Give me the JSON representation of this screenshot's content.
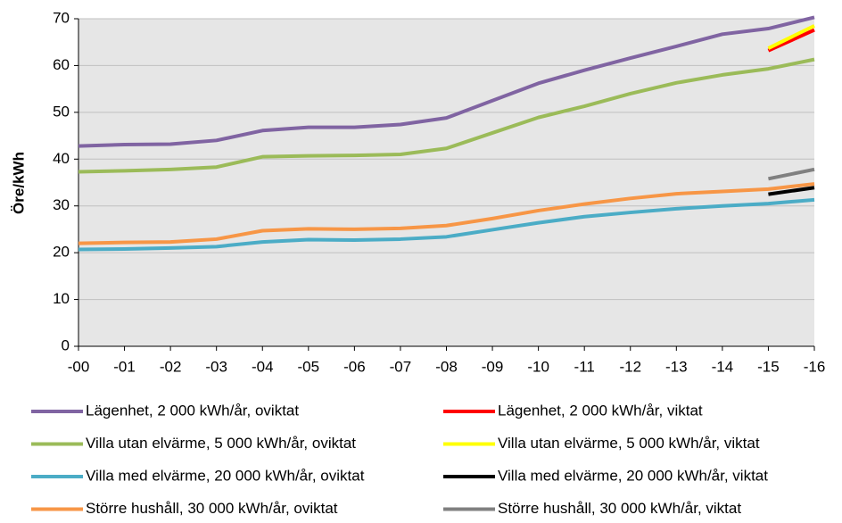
{
  "chart_data": {
    "type": "line",
    "y_label": "Öre/kWh",
    "categories": [
      "-00",
      "-01",
      "-02",
      "-03",
      "-04",
      "-05",
      "-06",
      "-07",
      "-08",
      "-09",
      "-10",
      "-11",
      "-12",
      "-13",
      "-14",
      "-15",
      "-16"
    ],
    "ylim": [
      0,
      70
    ],
    "yticks": [
      0,
      10,
      20,
      30,
      40,
      50,
      60,
      70
    ],
    "grid": true,
    "series": [
      {
        "name": "Lägenhet, 2 000 kWh/år, oviktat",
        "color": "#8064a2",
        "values": [
          42.8,
          43.1,
          43.2,
          44.0,
          46.1,
          46.8,
          46.8,
          47.4,
          48.8,
          52.5,
          56.2,
          59.0,
          61.6,
          64.1,
          66.7,
          67.9,
          70.3
        ]
      },
      {
        "name": "Villa utan elvärme, 5 000 kWh/år, oviktat",
        "color": "#9bbb59",
        "values": [
          37.3,
          37.5,
          37.8,
          38.3,
          40.5,
          40.7,
          40.8,
          41.0,
          42.3,
          45.6,
          48.9,
          51.3,
          54.0,
          56.3,
          58.0,
          59.3,
          61.3
        ]
      },
      {
        "name": "Villa med elvärme, 20 000 kWh/år, oviktat",
        "color": "#4bacc6",
        "values": [
          20.7,
          20.8,
          21.0,
          21.3,
          22.3,
          22.8,
          22.7,
          22.9,
          23.4,
          24.9,
          26.4,
          27.7,
          28.6,
          29.4,
          30.0,
          30.5,
          31.3
        ]
      },
      {
        "name": "Större hushåll, 30 000 kWh/år, oviktat",
        "color": "#f79646",
        "values": [
          22.0,
          22.2,
          22.3,
          22.9,
          24.7,
          25.1,
          25.0,
          25.2,
          25.8,
          27.3,
          29.0,
          30.4,
          31.6,
          32.6,
          33.1,
          33.6,
          34.7
        ]
      },
      {
        "name": "Lägenhet, 2 000 kWh/år, viktat",
        "color": "#ff0000",
        "values": [
          null,
          null,
          null,
          null,
          null,
          null,
          null,
          null,
          null,
          null,
          null,
          null,
          null,
          null,
          null,
          63.2,
          67.6
        ]
      },
      {
        "name": "Villa utan elvärme, 5 000 kWh/år, viktat",
        "color": "#ffff00",
        "values": [
          null,
          null,
          null,
          null,
          null,
          null,
          null,
          null,
          null,
          null,
          null,
          null,
          null,
          null,
          null,
          63.7,
          68.5
        ]
      },
      {
        "name": "Villa med elvärme, 20 000 kWh/år, viktat",
        "color": "#000000",
        "values": [
          null,
          null,
          null,
          null,
          null,
          null,
          null,
          null,
          null,
          null,
          null,
          null,
          null,
          null,
          null,
          32.5,
          33.9
        ]
      },
      {
        "name": "Större hushåll, 30 000 kWh/år, viktat",
        "color": "#808080",
        "values": [
          null,
          null,
          null,
          null,
          null,
          null,
          null,
          null,
          null,
          null,
          null,
          null,
          null,
          null,
          null,
          35.8,
          37.8
        ]
      }
    ]
  }
}
